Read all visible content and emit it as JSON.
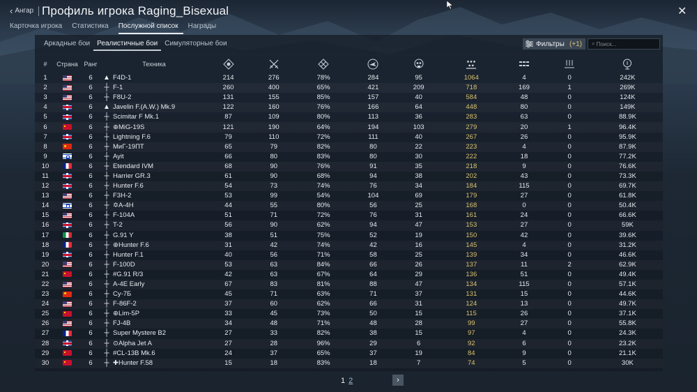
{
  "header": {
    "back_label": "Ангар",
    "title": "Профиль игрока Raging_Bisexual",
    "close_icon": "close-icon"
  },
  "main_tabs": [
    {
      "label": "Карточка игрока",
      "active": false
    },
    {
      "label": "Статистика",
      "active": false
    },
    {
      "label": "Послужной список",
      "active": true
    },
    {
      "label": "Награды",
      "active": false
    }
  ],
  "mode_tabs": [
    {
      "label": "Аркадные бои",
      "active": false
    },
    {
      "label": "Реалистичные бои",
      "active": true
    },
    {
      "label": "Симуляторные бои",
      "active": false
    }
  ],
  "filters": {
    "label": "Фильтры",
    "count": "(+1)"
  },
  "search": {
    "placeholder": "Поиск..."
  },
  "columns": {
    "num": "#",
    "country": "Страна",
    "rank": "Ранг",
    "vehicle": "Техника",
    "stat_icons": [
      "missions-icon",
      "battles-icon",
      "victories-percent-icon",
      "respawns-icon",
      "deaths-icon",
      "air-kills-icon",
      "ground-kills-icon",
      "naval-kills-icon",
      "score-icon"
    ]
  },
  "rows": [
    {
      "num": "1",
      "country": "usa",
      "rank": "6",
      "icon": "▲",
      "vehicle": "F4D-1",
      "s": [
        "214",
        "276",
        "78%",
        "284",
        "95",
        "1064",
        "4",
        "0",
        "242K"
      ]
    },
    {
      "num": "2",
      "country": "usa",
      "rank": "6",
      "icon": "┼",
      "vehicle": "F-1",
      "s": [
        "260",
        "400",
        "65%",
        "421",
        "209",
        "718",
        "169",
        "1",
        "269K"
      ]
    },
    {
      "num": "3",
      "country": "usa",
      "rank": "6",
      "icon": "┼",
      "vehicle": "F8U-2",
      "s": [
        "131",
        "155",
        "85%",
        "157",
        "40",
        "584",
        "48",
        "0",
        "124K"
      ]
    },
    {
      "num": "4",
      "country": "uk",
      "rank": "6",
      "icon": "▲",
      "vehicle": "Javelin F.(A.W.) Mk.9",
      "s": [
        "122",
        "160",
        "76%",
        "166",
        "64",
        "448",
        "80",
        "0",
        "149K"
      ]
    },
    {
      "num": "5",
      "country": "uk",
      "rank": "6",
      "icon": "┼",
      "vehicle": "Scimitar F Mk.1",
      "s": [
        "87",
        "109",
        "80%",
        "113",
        "36",
        "283",
        "63",
        "0",
        "88.9K"
      ]
    },
    {
      "num": "6",
      "country": "ussr",
      "rank": "6",
      "icon": "┼",
      "vehicle": "⊕MiG-19S",
      "s": [
        "121",
        "190",
        "64%",
        "194",
        "103",
        "279",
        "20",
        "1",
        "96.4K"
      ]
    },
    {
      "num": "7",
      "country": "uk",
      "rank": "6",
      "icon": "┼",
      "vehicle": "Lightning F.6",
      "s": [
        "79",
        "110",
        "72%",
        "111",
        "40",
        "267",
        "26",
        "0",
        "95.9K"
      ]
    },
    {
      "num": "8",
      "country": "china",
      "rank": "6",
      "icon": "┼",
      "vehicle": "МиГ-19ПТ",
      "s": [
        "65",
        "79",
        "82%",
        "80",
        "22",
        "223",
        "4",
        "0",
        "87.9K"
      ]
    },
    {
      "num": "9",
      "country": "israel",
      "rank": "6",
      "icon": "┼",
      "vehicle": "Ayit",
      "s": [
        "66",
        "80",
        "83%",
        "80",
        "30",
        "222",
        "18",
        "0",
        "77.2K"
      ]
    },
    {
      "num": "10",
      "country": "france",
      "rank": "6",
      "icon": "┼",
      "vehicle": "Etendard IVM",
      "s": [
        "68",
        "90",
        "76%",
        "91",
        "35",
        "218",
        "9",
        "0",
        "76.6K"
      ]
    },
    {
      "num": "11",
      "country": "uk",
      "rank": "6",
      "icon": "┼",
      "vehicle": "Harrier GR.3",
      "s": [
        "61",
        "90",
        "68%",
        "94",
        "38",
        "202",
        "43",
        "0",
        "73.3K"
      ]
    },
    {
      "num": "12",
      "country": "uk",
      "rank": "6",
      "icon": "┼",
      "vehicle": "Hunter F.6",
      "s": [
        "54",
        "73",
        "74%",
        "76",
        "34",
        "184",
        "115",
        "0",
        "69.7K"
      ]
    },
    {
      "num": "13",
      "country": "usa",
      "rank": "6",
      "icon": "┼",
      "vehicle": "F3H-2",
      "s": [
        "53",
        "99",
        "54%",
        "104",
        "69",
        "179",
        "27",
        "0",
        "61.8K"
      ]
    },
    {
      "num": "14",
      "country": "israel",
      "rank": "6",
      "icon": "┼",
      "vehicle": "✡A-4H",
      "s": [
        "44",
        "55",
        "80%",
        "56",
        "25",
        "168",
        "0",
        "0",
        "50.4K"
      ]
    },
    {
      "num": "15",
      "country": "usa",
      "rank": "6",
      "icon": "┼",
      "vehicle": "F-104A",
      "s": [
        "51",
        "71",
        "72%",
        "76",
        "31",
        "161",
        "24",
        "0",
        "66.6K"
      ]
    },
    {
      "num": "16",
      "country": "uk",
      "rank": "6",
      "icon": "┼",
      "vehicle": "T-2",
      "s": [
        "56",
        "90",
        "62%",
        "94",
        "47",
        "153",
        "27",
        "0",
        "59K"
      ]
    },
    {
      "num": "17",
      "country": "italy",
      "rank": "6",
      "icon": "┼",
      "vehicle": "G.91 Y",
      "s": [
        "38",
        "51",
        "75%",
        "52",
        "19",
        "150",
        "42",
        "0",
        "39.6K"
      ]
    },
    {
      "num": "18",
      "country": "france",
      "rank": "6",
      "icon": "┼",
      "vehicle": "⊕Hunter F.6",
      "s": [
        "31",
        "42",
        "74%",
        "42",
        "16",
        "145",
        "4",
        "0",
        "31.2K"
      ]
    },
    {
      "num": "19",
      "country": "uk",
      "rank": "6",
      "icon": "┼",
      "vehicle": "Hunter F.1",
      "s": [
        "40",
        "56",
        "71%",
        "58",
        "25",
        "139",
        "34",
        "0",
        "46.6K"
      ]
    },
    {
      "num": "20",
      "country": "usa",
      "rank": "6",
      "icon": "┼",
      "vehicle": "F-100D",
      "s": [
        "53",
        "63",
        "84%",
        "66",
        "26",
        "137",
        "11",
        "2",
        "62.9K"
      ]
    },
    {
      "num": "21",
      "country": "ussr",
      "rank": "6",
      "icon": "┼",
      "vehicle": "#G.91 R/3",
      "s": [
        "42",
        "63",
        "67%",
        "64",
        "29",
        "136",
        "51",
        "0",
        "49.4K"
      ]
    },
    {
      "num": "22",
      "country": "usa",
      "rank": "6",
      "icon": "┼",
      "vehicle": "A-4E Early",
      "s": [
        "67",
        "83",
        "81%",
        "88",
        "47",
        "134",
        "115",
        "0",
        "57.1K"
      ]
    },
    {
      "num": "23",
      "country": "china",
      "rank": "6",
      "icon": "┼",
      "vehicle": "Су-7Б",
      "s": [
        "45",
        "71",
        "63%",
        "71",
        "37",
        "131",
        "15",
        "0",
        "44.6K"
      ]
    },
    {
      "num": "24",
      "country": "usa",
      "rank": "6",
      "icon": "┼",
      "vehicle": "F-86F-2",
      "s": [
        "37",
        "60",
        "62%",
        "66",
        "31",
        "124",
        "13",
        "0",
        "49.7K"
      ]
    },
    {
      "num": "25",
      "country": "ussr",
      "rank": "6",
      "icon": "┼",
      "vehicle": "⊕Lim-5P",
      "s": [
        "33",
        "45",
        "73%",
        "50",
        "15",
        "115",
        "26",
        "0",
        "37.1K"
      ]
    },
    {
      "num": "26",
      "country": "usa",
      "rank": "6",
      "icon": "┼",
      "vehicle": "FJ-4B",
      "s": [
        "34",
        "48",
        "71%",
        "48",
        "28",
        "99",
        "27",
        "0",
        "55.8K"
      ]
    },
    {
      "num": "27",
      "country": "france",
      "rank": "6",
      "icon": "┼",
      "vehicle": "Super Mystere B2",
      "s": [
        "27",
        "33",
        "82%",
        "38",
        "15",
        "97",
        "4",
        "0",
        "24.3K"
      ]
    },
    {
      "num": "28",
      "country": "uk",
      "rank": "6",
      "icon": "┼",
      "vehicle": "⊙Alpha Jet A",
      "s": [
        "27",
        "28",
        "96%",
        "29",
        "6",
        "92",
        "6",
        "0",
        "23.2K"
      ]
    },
    {
      "num": "29",
      "country": "ussr",
      "rank": "6",
      "icon": "┼",
      "vehicle": "#CL-13B Mk.6",
      "s": [
        "24",
        "37",
        "65%",
        "37",
        "19",
        "84",
        "9",
        "0",
        "21.1K"
      ]
    },
    {
      "num": "30",
      "country": "ussr",
      "rank": "6",
      "icon": "┼",
      "vehicle": "✚Hunter F.58",
      "s": [
        "15",
        "18",
        "83%",
        "18",
        "7",
        "74",
        "5",
        "0",
        "30K"
      ]
    }
  ],
  "pagination": {
    "current": "1",
    "other": "2",
    "next_icon": "chevron-right-icon"
  },
  "colors": {
    "accent_gold": "#d9c26e",
    "panel": "#141b24"
  }
}
